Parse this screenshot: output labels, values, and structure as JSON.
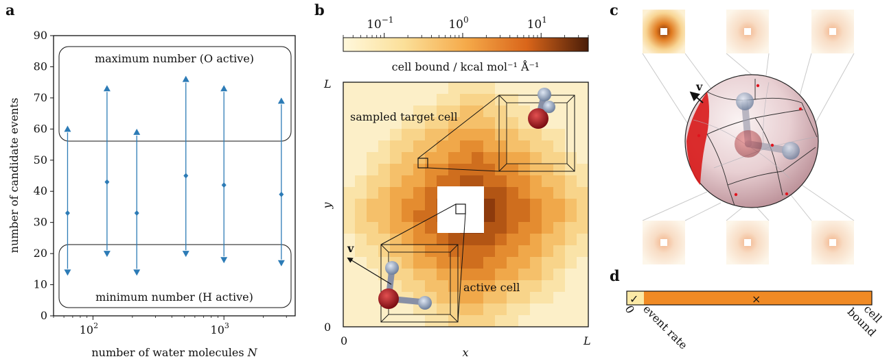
{
  "panels": {
    "a": "a",
    "b": "b",
    "c": "c",
    "d": "d"
  },
  "chart_data": [
    {
      "type": "scatter",
      "panel": "a",
      "xlabel": "number of water molecules N",
      "ylabel": "number of candidate events",
      "xscale": "log",
      "xlim": [
        50,
        3500
      ],
      "ylim": [
        0,
        90
      ],
      "yticks": [
        "0",
        "10",
        "20",
        "30",
        "40",
        "50",
        "60",
        "70",
        "80",
        "90"
      ],
      "xticks": [
        {
          "value": 100,
          "base": "10",
          "exp": "2"
        },
        {
          "value": 1000,
          "base": "10",
          "exp": "3"
        }
      ],
      "grid": false,
      "annotations": {
        "max": "maximum number (O active)",
        "min": "minimum number (H active)"
      },
      "color": "#2c7bb6",
      "x": [
        64,
        128,
        216,
        512,
        1000,
        2744
      ],
      "min": [
        14,
        20,
        14,
        20,
        18,
        17
      ],
      "mean": [
        33,
        43,
        33,
        45,
        42,
        39
      ],
      "max": [
        60,
        73,
        59,
        76,
        73,
        69
      ]
    },
    {
      "type": "heatmap",
      "panel": "b",
      "xlabel": "x",
      "ylabel": "y",
      "xticks": [
        "0",
        "L"
      ],
      "yticks": [
        "0",
        "L"
      ],
      "colorbar": {
        "label": "cell bound / kcal mol⁻¹ Å⁻¹",
        "scale": "log",
        "ticks": [
          {
            "value": 0.1,
            "base": "10",
            "exp": "−1"
          },
          {
            "value": 1,
            "base": "10",
            "exp": "0"
          },
          {
            "value": 10,
            "base": "10",
            "exp": "1"
          }
        ],
        "range": [
          0.03,
          40
        ]
      },
      "annotations": {
        "target": "sampled target cell",
        "active": "active cell",
        "velocity": "v"
      }
    },
    {
      "type": "diagram",
      "panel": "c",
      "velocity": "v"
    },
    {
      "type": "bar",
      "panel": "d",
      "labels": {
        "zero": "0",
        "event": "event rate",
        "bound": "cell bound"
      },
      "values": {
        "event_rate_fraction": 0.07
      },
      "marks": {
        "accept": "✓",
        "reject": "×"
      },
      "colors": {
        "event": "#fbe9a6",
        "rest": "#f08a24"
      }
    }
  ]
}
